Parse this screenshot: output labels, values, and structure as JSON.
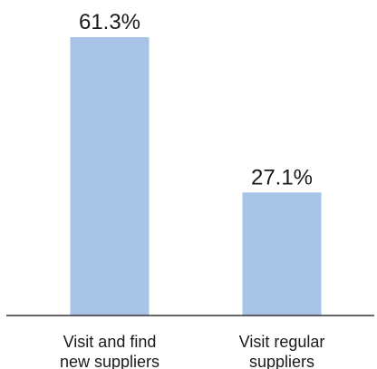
{
  "chart_data": {
    "type": "bar",
    "title": "",
    "xlabel": "",
    "ylabel": "",
    "categories": [
      [
        "Visit and find",
        "new suppliers"
      ],
      [
        "Visit regular",
        "suppliers"
      ]
    ],
    "values": [
      61.3,
      27.1
    ],
    "value_labels": [
      "61.3%",
      "27.1%"
    ],
    "ylim": [
      0,
      61.3
    ],
    "bar_color": "#a7c4e7",
    "axis_color": "#333333",
    "grid": false,
    "legend": "none"
  }
}
